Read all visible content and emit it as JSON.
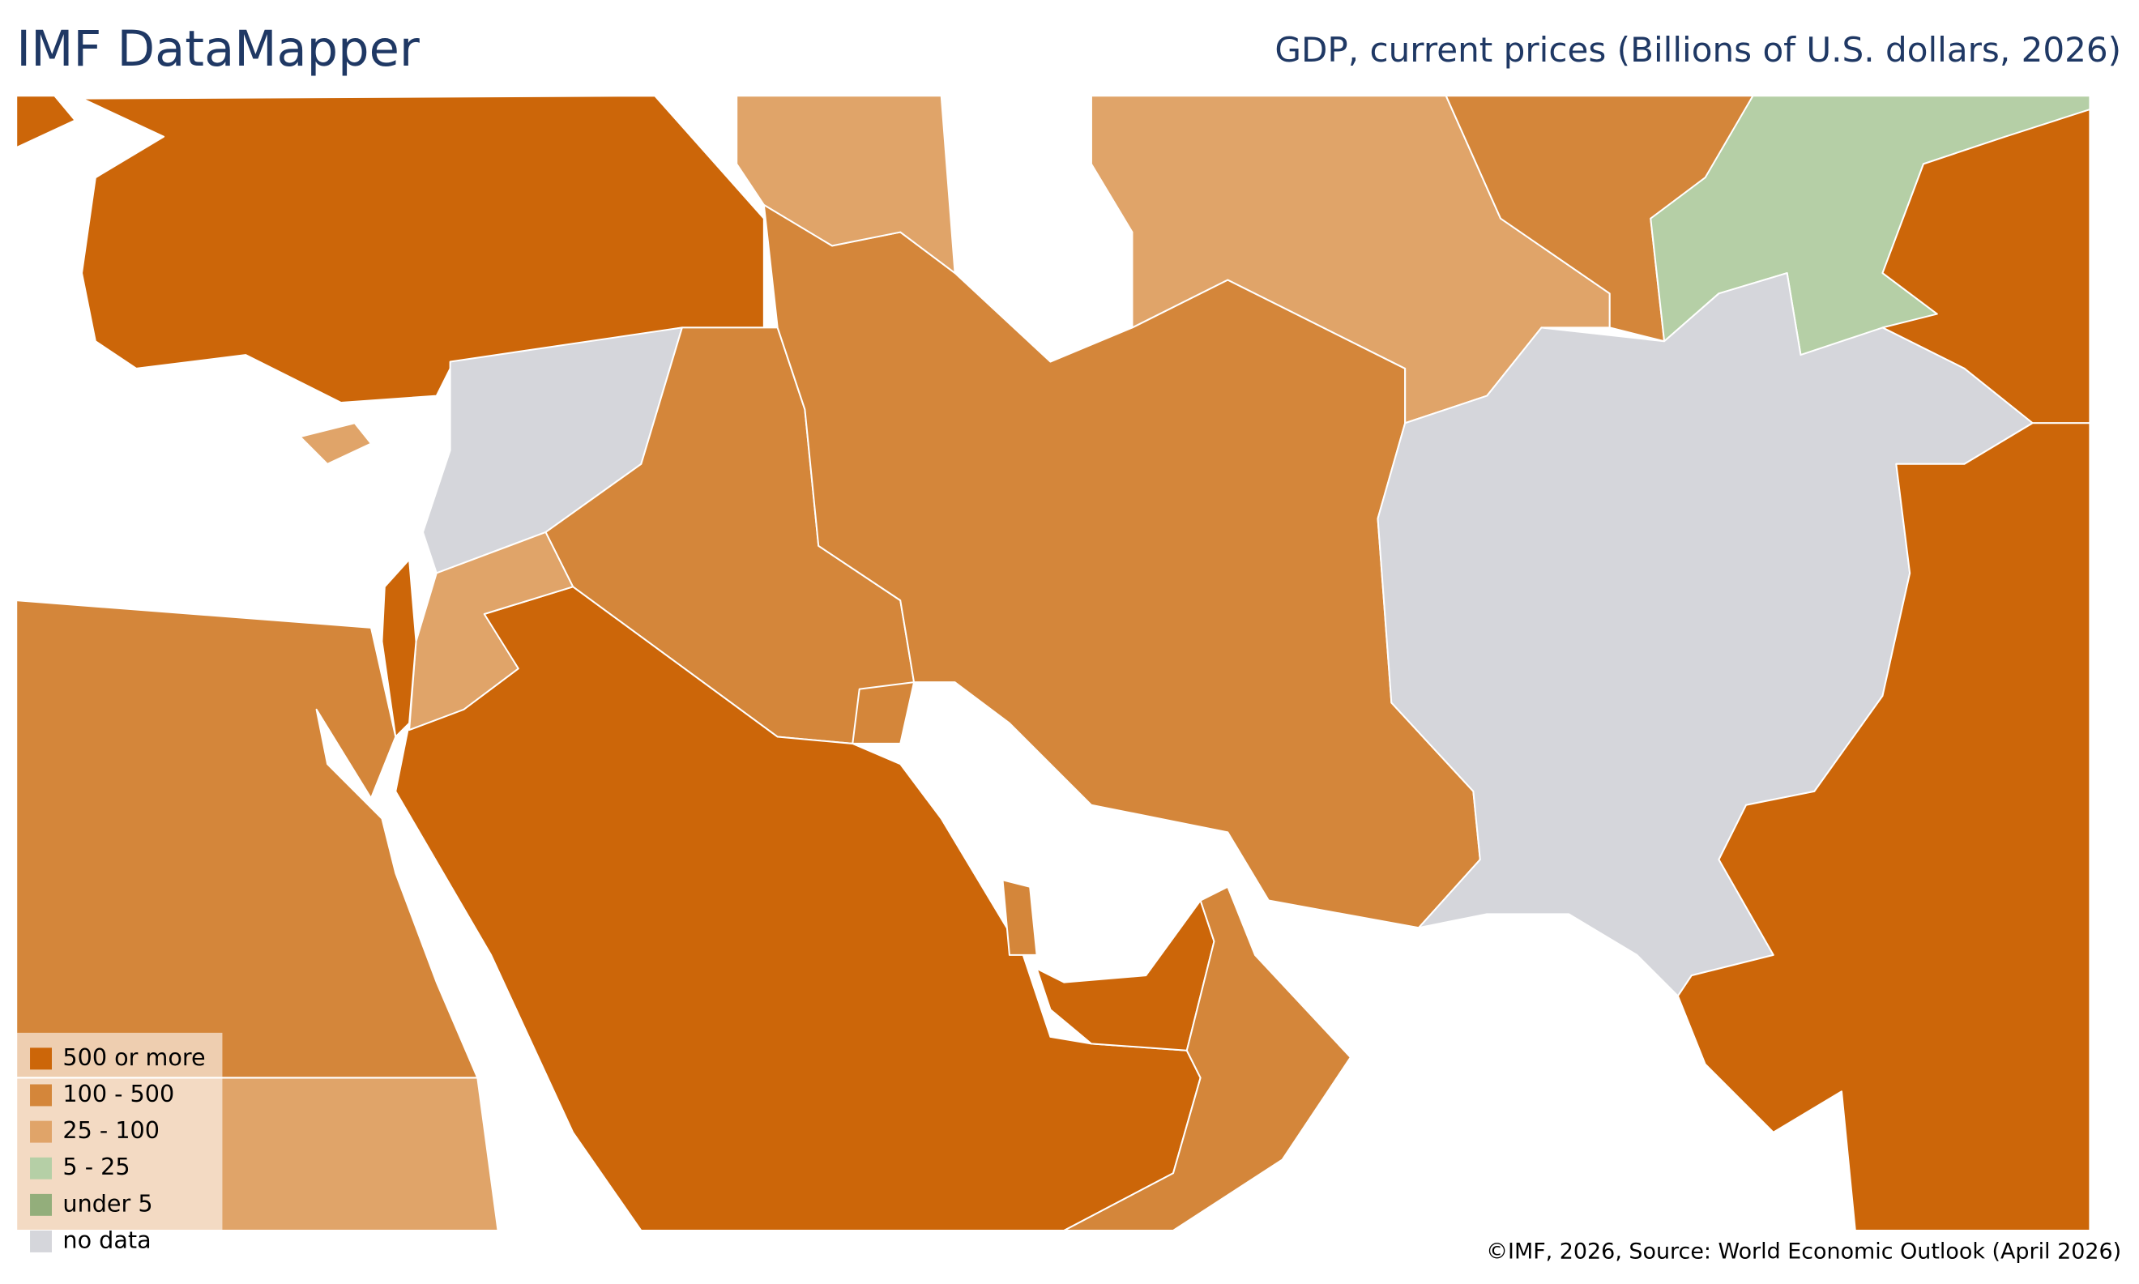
{
  "header": {
    "title": "IMF DataMapper",
    "subtitle": "GDP, current prices (Billions of U.S. dollars, 2026)"
  },
  "legend": {
    "items": [
      {
        "label": "500 or more",
        "color": "#cc6609"
      },
      {
        "label": "100 - 500",
        "color": "#d4863a"
      },
      {
        "label": "25 - 100",
        "color": "#e0a469"
      },
      {
        "label": "5 - 25",
        "color": "#b5cfa6"
      },
      {
        "label": "under 5",
        "color": "#93ae7b"
      },
      {
        "label": "no data",
        "color": "#d5d6db"
      }
    ]
  },
  "footer": {
    "source": "©IMF, 2026, Source: World Economic Outlook (April 2026)"
  }
}
